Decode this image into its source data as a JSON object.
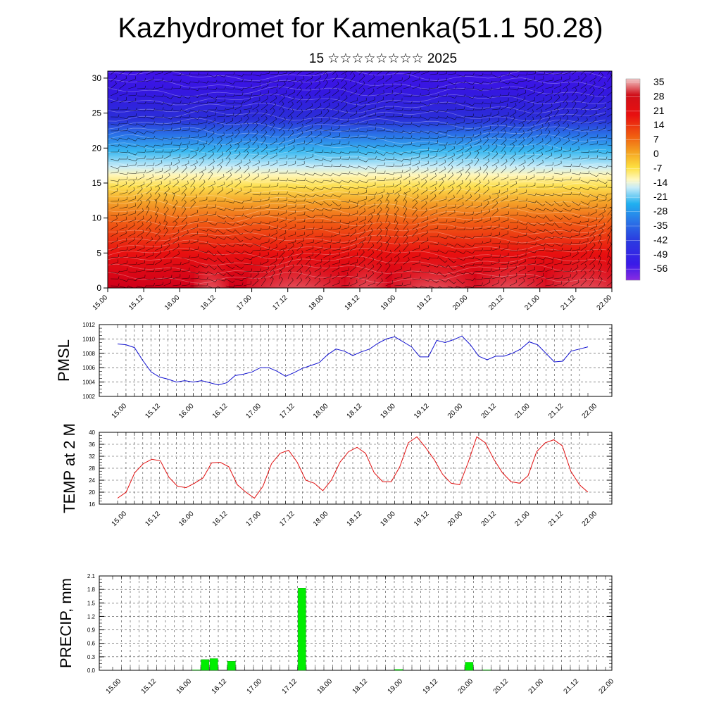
{
  "title": "Kazhydromet for Kamenka(51.1 50.28)",
  "subtitle": "15 ☆☆☆☆☆☆☆☆ 2025",
  "colors": {
    "pmsl_line": "#1010d0",
    "temp_line": "#e01010",
    "precip_bar": "#00ee00",
    "grid": "#555555"
  },
  "chart_data": [
    {
      "type": "heatmap",
      "name": "upper-air-temperature-section",
      "x_tick_labels": [
        "15.00",
        "15.12",
        "16.00",
        "16.12",
        "17.00",
        "17.12",
        "18.00",
        "18.12",
        "19.00",
        "19.12",
        "20.00",
        "20.12",
        "21.00",
        "21.12",
        "22.00"
      ],
      "y_tick_labels": [
        "0",
        "5",
        "10",
        "15",
        "20",
        "25",
        "30"
      ],
      "ylim": [
        0,
        31
      ],
      "colorbar_labels": [
        "35",
        "28",
        "21",
        "14",
        "7",
        "0",
        "-7",
        "-14",
        "-21",
        "-28",
        "-35",
        "-42",
        "-49",
        "-56"
      ],
      "colorbar_range": [
        -63,
        42
      ]
    },
    {
      "type": "line",
      "name": "pmsl",
      "ylabel": "PMSL",
      "x_tick_labels": [
        "15.00",
        "15.12",
        "16.00",
        "16.12",
        "17.00",
        "17.12",
        "18.00",
        "18.12",
        "19.00",
        "19.12",
        "20.00",
        "20.12",
        "21.00",
        "21.12",
        "22.00"
      ],
      "y_tick_labels": [
        "1002",
        "1004",
        "1006",
        "1008",
        "1010",
        "1012"
      ],
      "ylim": [
        1002,
        1012
      ],
      "values": [
        1009.3,
        1009.2,
        1008.8,
        1007.0,
        1005.4,
        1004.7,
        1004.4,
        1004.0,
        1004.2,
        1004.0,
        1004.2,
        1003.9,
        1003.6,
        1003.9,
        1004.9,
        1005.1,
        1005.4,
        1006.0,
        1006.0,
        1005.5,
        1004.8,
        1005.3,
        1005.9,
        1006.3,
        1006.7,
        1007.8,
        1008.6,
        1008.3,
        1007.7,
        1008.2,
        1008.6,
        1009.4,
        1010.0,
        1010.3,
        1009.6,
        1008.9,
        1007.5,
        1007.5,
        1009.8,
        1009.5,
        1009.9,
        1010.4,
        1009.2,
        1007.6,
        1007.1,
        1007.6,
        1007.6,
        1008.0,
        1008.6,
        1009.6,
        1009.2,
        1008.0,
        1006.8,
        1006.9,
        1008.3,
        1008.6,
        1008.9
      ]
    },
    {
      "type": "line",
      "name": "temp-2m",
      "ylabel": "TEMP at 2 M",
      "x_tick_labels": [
        "15.00",
        "15.12",
        "16.00",
        "16.12",
        "17.00",
        "17.12",
        "18.00",
        "18.12",
        "19.00",
        "19.12",
        "20.00",
        "20.12",
        "21.00",
        "21.12",
        "22.00"
      ],
      "y_tick_labels": [
        "16",
        "20",
        "24",
        "28",
        "32",
        "36",
        "40"
      ],
      "ylim": [
        16,
        40
      ],
      "values": [
        18.0,
        20.0,
        26.5,
        29.5,
        31.0,
        30.5,
        25.0,
        22.0,
        21.5,
        23.0,
        24.8,
        29.8,
        30.0,
        28.5,
        22.5,
        20.0,
        18.0,
        22.0,
        29.5,
        33.0,
        34.0,
        30.0,
        24.0,
        23.0,
        20.5,
        24.0,
        30.0,
        33.5,
        35.0,
        33.0,
        26.5,
        23.5,
        23.5,
        28.5,
        36.5,
        38.5,
        35.0,
        31.0,
        26.0,
        23.0,
        22.5,
        30.0,
        38.5,
        36.5,
        31.0,
        26.5,
        23.5,
        23.0,
        25.5,
        33.5,
        36.5,
        37.5,
        35.5,
        27.0,
        22.5,
        20.0
      ]
    },
    {
      "type": "bar",
      "name": "precip",
      "ylabel": "PRECIP, mm",
      "x_tick_labels": [
        "15.00",
        "15.12",
        "16.00",
        "16.12",
        "17.00",
        "17.12",
        "18.00",
        "18.12",
        "19.00",
        "19.12",
        "20.00",
        "20.12",
        "21.00",
        "21.12",
        "22.00"
      ],
      "y_tick_labels": [
        "0.0",
        "0.3",
        "0.6",
        "0.9",
        "1.2",
        "1.5",
        "1.8",
        "2.1"
      ],
      "ylim": [
        0,
        2.1
      ],
      "values": [
        0,
        0,
        0,
        0,
        0,
        0,
        0,
        0,
        0,
        0.01,
        0.24,
        0.26,
        0,
        0.2,
        0,
        0,
        0,
        0,
        0,
        0,
        0,
        1.83,
        0,
        0,
        0,
        0,
        0,
        0,
        0,
        0,
        0,
        0,
        0.02,
        0,
        0,
        0,
        0,
        0,
        0,
        0,
        0.18,
        0,
        0.01,
        0,
        0,
        0,
        0,
        0,
        0,
        0,
        0,
        0,
        0,
        0,
        0,
        0
      ]
    }
  ]
}
